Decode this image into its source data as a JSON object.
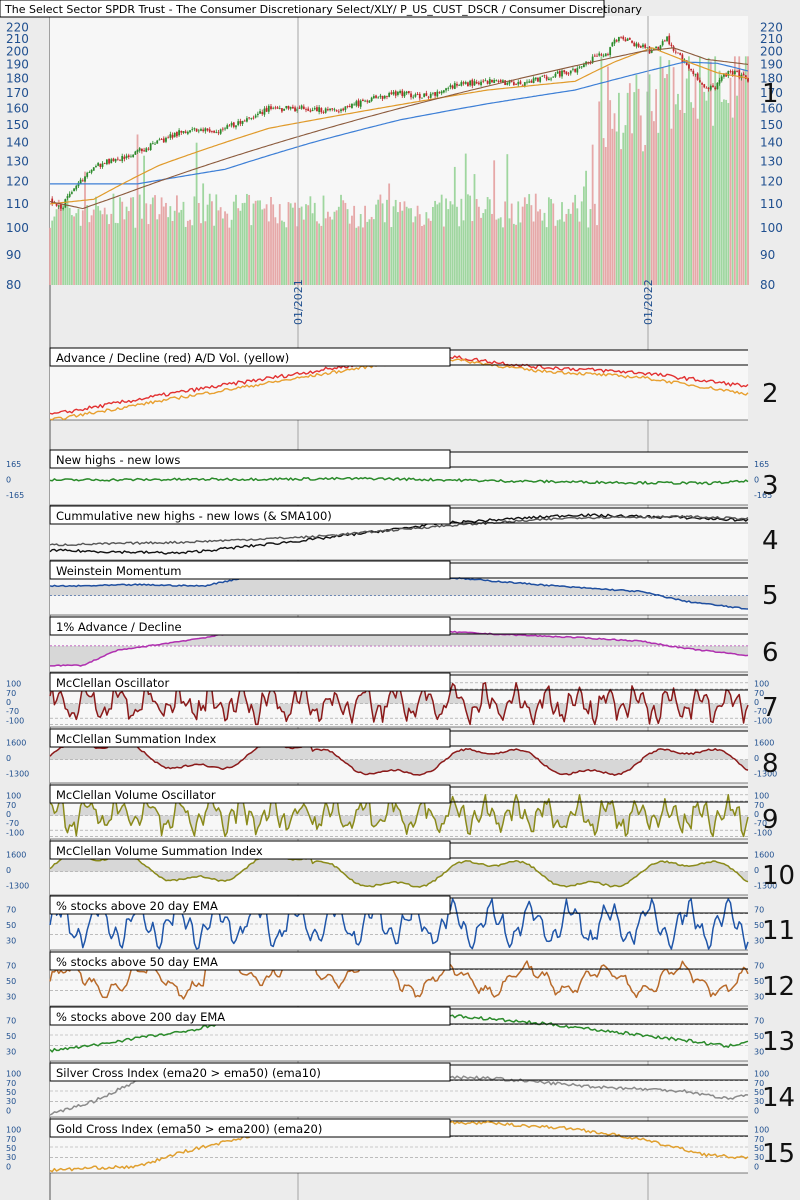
{
  "chart_title": "The Select Sector SPDR Trust - The Consumer Discretionary Select/XLY/ P_US_CUST_DSCR / Consumer Discretionary",
  "colors": {
    "background": "#ececec",
    "plot_bg": "#f7f7f7",
    "candle_up": "#2b8a2b",
    "candle_down": "#c0282c",
    "volume_up": "#8fd08f",
    "volume_down": "#e39a9a",
    "sma_orange": "#e09a2a",
    "sma_blue": "#3d7fd6",
    "sma_brown": "#8b5a3c",
    "axis_text": "#1f4f8f",
    "grid": "#bdbdbd"
  },
  "chart_data": [
    {
      "id": 1,
      "type": "candlestick",
      "title": "The Select Sector SPDR Trust - The Consumer Discretionary Select/XLY/ P_US_CUST_DSCR / Consumer Discretionary",
      "yscale": "log",
      "ylim": [
        80,
        230
      ],
      "y_ticks": [
        220,
        210,
        200,
        190,
        180,
        170,
        160,
        150,
        140,
        130,
        120,
        110,
        100,
        90,
        80
      ],
      "x_ticks": [
        "01/2021",
        "01/2022"
      ],
      "close_keypoints": [
        [
          0,
          112
        ],
        [
          5,
          108
        ],
        [
          12,
          118
        ],
        [
          22,
          128
        ],
        [
          35,
          133
        ],
        [
          50,
          140
        ],
        [
          62,
          147
        ],
        [
          75,
          146
        ],
        [
          88,
          152
        ],
        [
          100,
          160
        ],
        [
          115,
          160
        ],
        [
          130,
          158
        ],
        [
          145,
          165
        ],
        [
          160,
          170
        ],
        [
          172,
          168
        ],
        [
          185,
          175
        ],
        [
          200,
          178
        ],
        [
          215,
          176
        ],
        [
          228,
          181
        ],
        [
          240,
          187
        ],
        [
          255,
          200
        ],
        [
          260,
          212
        ],
        [
          268,
          206
        ],
        [
          275,
          200
        ],
        [
          282,
          210
        ],
        [
          288,
          196
        ],
        [
          293,
          186
        ],
        [
          298,
          176
        ],
        [
          303,
          172
        ],
        [
          308,
          183
        ],
        [
          313,
          184
        ],
        [
          318,
          180
        ],
        [
          320,
          177
        ]
      ],
      "sma_orange_keypoints": [
        [
          0,
          110
        ],
        [
          20,
          112
        ],
        [
          50,
          128
        ],
        [
          100,
          148
        ],
        [
          150,
          160
        ],
        [
          200,
          172
        ],
        [
          240,
          178
        ],
        [
          258,
          192
        ],
        [
          275,
          203
        ],
        [
          290,
          193
        ],
        [
          305,
          184
        ],
        [
          320,
          180
        ]
      ],
      "sma_blue_keypoints": [
        [
          0,
          119
        ],
        [
          40,
          119
        ],
        [
          80,
          126
        ],
        [
          120,
          140
        ],
        [
          160,
          153
        ],
        [
          200,
          163
        ],
        [
          240,
          172
        ],
        [
          270,
          184
        ],
        [
          290,
          192
        ],
        [
          305,
          191
        ],
        [
          320,
          185
        ]
      ],
      "sma_brown_keypoints": [
        [
          0,
          111
        ],
        [
          15,
          108
        ],
        [
          30,
          113
        ],
        [
          270,
          200
        ],
        [
          285,
          203
        ],
        [
          300,
          194
        ],
        [
          320,
          190
        ]
      ],
      "volume_range": [
        0,
        1
      ]
    },
    {
      "id": 2,
      "type": "line",
      "title": "Advance / Decline (red) A/D Vol. (yellow)",
      "series": [
        {
          "color": "#e23030",
          "keypoints": [
            [
              0,
              0.25
            ],
            [
              60,
              0.55
            ],
            [
              150,
              0.95
            ],
            [
              185,
              1.0
            ],
            [
              220,
              0.88
            ],
            [
              270,
              0.8
            ],
            [
              320,
              0.62
            ]
          ]
        },
        {
          "color": "#e8a030",
          "keypoints": [
            [
              0,
              0.18
            ],
            [
              60,
              0.48
            ],
            [
              150,
              0.9
            ],
            [
              185,
              0.97
            ],
            [
              220,
              0.83
            ],
            [
              270,
              0.74
            ],
            [
              320,
              0.52
            ]
          ]
        }
      ]
    },
    {
      "id": 3,
      "type": "line",
      "title": "New highs - new lows",
      "y_ticks": [
        "165",
        "0",
        "-165"
      ],
      "series": [
        {
          "color": "#2a8a2a",
          "keypoints": [
            [
              0,
              0.05
            ],
            [
              100,
              0.1
            ],
            [
              150,
              0.12
            ],
            [
              200,
              0.02
            ],
            [
              250,
              -0.05
            ],
            [
              300,
              -0.1
            ],
            [
              320,
              0.0
            ]
          ]
        }
      ]
    },
    {
      "id": 4,
      "type": "line",
      "title": "Cummulative new highs - new lows (& SMA100)",
      "series": [
        {
          "color": "#111111",
          "keypoints": [
            [
              0,
              0.2
            ],
            [
              60,
              0.15
            ],
            [
              120,
              0.4
            ],
            [
              180,
              0.7
            ],
            [
              240,
              0.85
            ],
            [
              290,
              0.8
            ],
            [
              320,
              0.75
            ]
          ]
        },
        {
          "color": "#555555",
          "keypoints": [
            [
              0,
              0.3
            ],
            [
              60,
              0.35
            ],
            [
              120,
              0.45
            ],
            [
              180,
              0.65
            ],
            [
              240,
              0.8
            ],
            [
              290,
              0.82
            ],
            [
              320,
              0.78
            ]
          ]
        }
      ]
    },
    {
      "id": 5,
      "type": "line",
      "title": "Weinstein Momentum",
      "series": [
        {
          "color": "#1f4fa0",
          "keypoints": [
            [
              12,
              0.35
            ],
            [
              40,
              0.4
            ],
            [
              70,
              0.35
            ],
            [
              100,
              0.85
            ],
            [
              130,
              0.95
            ],
            [
              165,
              0.75
            ],
            [
              200,
              0.55
            ],
            [
              240,
              0.3
            ],
            [
              270,
              0.15
            ],
            [
              290,
              -0.2
            ],
            [
              320,
              -0.5
            ]
          ]
        }
      ]
    },
    {
      "id": 6,
      "type": "line",
      "title": "1% Advance / Decline",
      "series": [
        {
          "color": "#b030b0",
          "keypoints": [
            [
              15,
              -0.8
            ],
            [
              30,
              -0.2
            ],
            [
              60,
              0.2
            ],
            [
              100,
              0.75
            ],
            [
              130,
              0.85
            ],
            [
              160,
              0.7
            ],
            [
              200,
              0.5
            ],
            [
              240,
              0.35
            ],
            [
              270,
              0.2
            ],
            [
              290,
              -0.1
            ],
            [
              320,
              -0.4
            ]
          ]
        }
      ]
    },
    {
      "id": 7,
      "type": "oscillator",
      "title": "McClellan Oscillator",
      "y_ticks": [
        "100",
        "70",
        "0",
        "-70",
        "-100"
      ],
      "series": [
        {
          "color": "#8b1a1a"
        }
      ]
    },
    {
      "id": 8,
      "type": "line",
      "title": "McClellan Summation Index",
      "y_ticks": [
        "1600",
        "0",
        "-1300"
      ],
      "series": [
        {
          "color": "#8b1a1a"
        }
      ]
    },
    {
      "id": 9,
      "type": "oscillator",
      "title": "McClellan Volume Oscillator",
      "y_ticks": [
        "100",
        "70",
        "0",
        "-70",
        "-100"
      ],
      "series": [
        {
          "color": "#8a8a1a"
        }
      ]
    },
    {
      "id": 10,
      "type": "line",
      "title": "McClellan Volume Summation Index",
      "y_ticks": [
        "1600",
        "0",
        "-1300"
      ],
      "series": [
        {
          "color": "#8a8a1a"
        }
      ]
    },
    {
      "id": 11,
      "type": "line",
      "title": "% stocks above 20 day EMA",
      "y_ticks": [
        "70",
        "50",
        "30"
      ],
      "series": [
        {
          "color": "#1f55a8"
        }
      ]
    },
    {
      "id": 12,
      "type": "line",
      "title": "% stocks above 50 day EMA",
      "y_ticks": [
        "70",
        "50",
        "30"
      ],
      "series": [
        {
          "color": "#b86a2a"
        }
      ]
    },
    {
      "id": 13,
      "type": "line",
      "title": "% stocks above 200 day EMA",
      "y_ticks": [
        "70",
        "50",
        "30"
      ],
      "series": [
        {
          "color": "#2a8a2a",
          "keypoints": [
            [
              0,
              20
            ],
            [
              20,
              30
            ],
            [
              40,
              45
            ],
            [
              60,
              55
            ],
            [
              85,
              80
            ],
            [
              110,
              95
            ],
            [
              150,
              95
            ],
            [
              190,
              85
            ],
            [
              230,
              70
            ],
            [
              260,
              55
            ],
            [
              290,
              40
            ],
            [
              310,
              28
            ],
            [
              320,
              40
            ]
          ]
        }
      ]
    },
    {
      "id": 14,
      "type": "line",
      "title": "Silver Cross Index (ema20 > ema50) (ema10)",
      "y_ticks": [
        "100",
        "70",
        "50",
        "30",
        "0"
      ],
      "series": [
        {
          "color": "#8a8a8a",
          "keypoints": [
            [
              0,
              5
            ],
            [
              20,
              30
            ],
            [
              40,
              70
            ],
            [
              55,
              90
            ],
            [
              90,
              80
            ],
            [
              150,
              82
            ],
            [
              200,
              75
            ],
            [
              250,
              58
            ],
            [
              290,
              50
            ],
            [
              310,
              35
            ],
            [
              320,
              45
            ]
          ]
        }
      ]
    },
    {
      "id": 15,
      "type": "line",
      "title": "Gold Cross Index (ema50 > ema200) (ema20)",
      "y_ticks": [
        "100",
        "70",
        "50",
        "30",
        "0"
      ],
      "series": [
        {
          "color": "#e0a030",
          "keypoints": [
            [
              0,
              5
            ],
            [
              20,
              10
            ],
            [
              40,
              12
            ],
            [
              60,
              40
            ],
            [
              90,
              70
            ],
            [
              120,
              90
            ],
            [
              160,
              97
            ],
            [
              200,
              96
            ],
            [
              240,
              85
            ],
            [
              270,
              65
            ],
            [
              300,
              35
            ],
            [
              320,
              28
            ]
          ]
        }
      ]
    }
  ]
}
